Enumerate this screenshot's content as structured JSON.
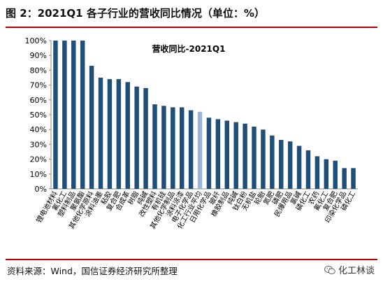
{
  "figure": {
    "title": "图 2：2021Q1 各子行业的营收同比情况（单位：%）",
    "source": "资料来源：Wind，国信证券经济研究所整理",
    "watermark": "化工林谈",
    "watermark_icon": "wechat-icon"
  },
  "chart_data": {
    "type": "bar",
    "title": "营收同比-2021Q1",
    "ylim": [
      0,
      100
    ],
    "yticks": [
      "0%",
      "10%",
      "20%",
      "30%",
      "40%",
      "50%",
      "60%",
      "70%",
      "80%",
      "90%",
      "100%"
    ],
    "grid": false,
    "categories": [
      "锂电池材料",
      "氟化工",
      "塑料制品",
      "聚氨酯",
      "其他化学原料",
      "涂料油墨",
      "粘胶",
      "复合肥",
      "合成革",
      "树脂",
      "纯碱",
      "改性塑料",
      "有机硅",
      "其他化学制品",
      "涂料涂漆",
      "电子化学品",
      "化工行业平均",
      "日用化学品",
      "玻纤",
      "橡胶制品",
      "纯碱",
      "钛白粉",
      "无机盐",
      "轮胎",
      "氮肥",
      "磷肥",
      "民爆用品",
      "氯碱",
      "磷化工",
      "农药",
      "氟化工",
      "复合肥",
      "印染化学品",
      "磷化工"
    ],
    "values": [
      100,
      100,
      100,
      100,
      83,
      75,
      74,
      74,
      72,
      69,
      68,
      57,
      56,
      55,
      55,
      53,
      52,
      48,
      47,
      46,
      45,
      44,
      42,
      40,
      36,
      33,
      32,
      29,
      26,
      22,
      20,
      19,
      14,
      14
    ],
    "highlight_index": 16,
    "colors": {
      "bar": "#1f4e79",
      "highlight": "#9bb3d6",
      "axis": "#888888",
      "text": "#000000"
    }
  }
}
